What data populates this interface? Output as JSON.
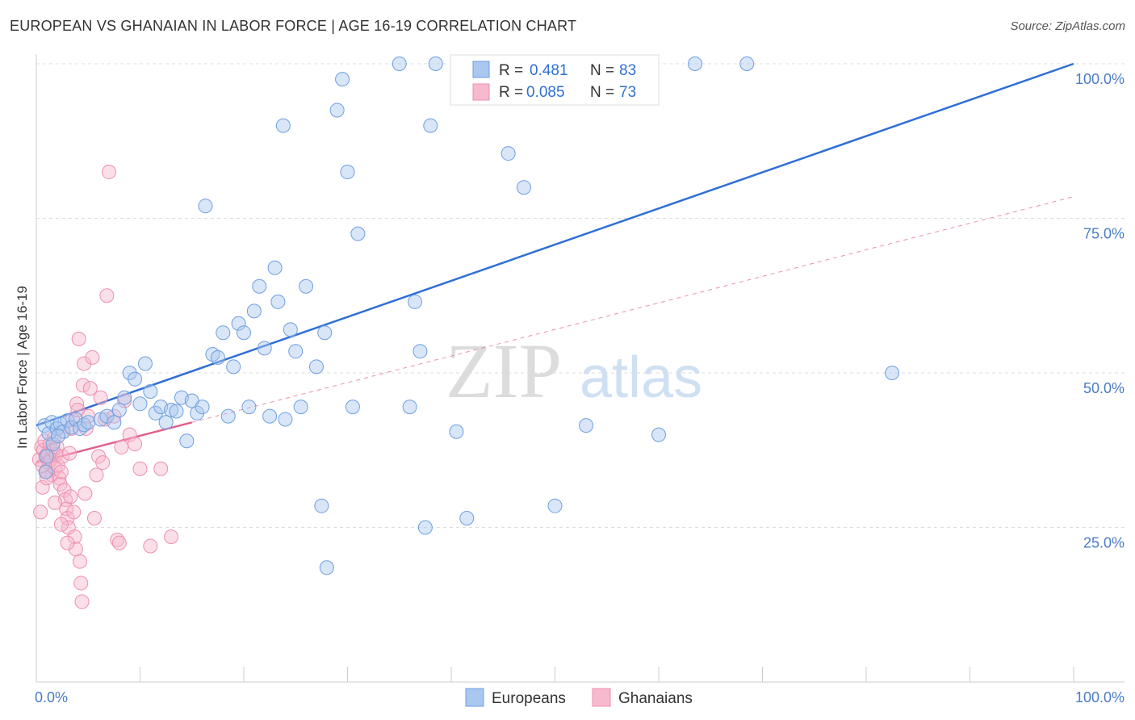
{
  "title": "EUROPEAN VS GHANAIAN IN LABOR FORCE | AGE 16-19 CORRELATION CHART",
  "source": "Source: ZipAtlas.com",
  "watermark": {
    "zip": "ZIP",
    "atlas": "atlas"
  },
  "colors": {
    "european_fill": "#a9c7ef",
    "european_stroke": "#6f9fe0",
    "european_line": "#2f6fd6",
    "ghanaian_fill": "#f7b9cd",
    "ghanaian_stroke": "#ec8fae",
    "ghanaian_line": "#e0608c",
    "axis_label": "#4a7cc7",
    "grid": "#dddddd"
  },
  "legend_top": [
    {
      "r_label": "R =",
      "r_value": "0.481",
      "n_label": "N =",
      "n_value": "83"
    },
    {
      "r_label": "R =",
      "r_value": "0.085",
      "n_label": "N =",
      "n_value": "73"
    }
  ],
  "chart_data": {
    "type": "scatter",
    "title": "EUROPEAN VS GHANAIAN IN LABOR FORCE | AGE 16-19 CORRELATION CHART",
    "xlabel": "",
    "ylabel": "In Labor Force | Age 16-19",
    "xlim": [
      0,
      100
    ],
    "ylim": [
      0,
      100
    ],
    "x_tick_labels": [
      "0.0%",
      "100.0%"
    ],
    "y_tick_values": [
      25,
      50,
      75,
      100
    ],
    "y_tick_labels": [
      "25.0%",
      "50.0%",
      "75.0%",
      "100.0%"
    ],
    "grid": true,
    "legend_position": "top-center",
    "series": [
      {
        "name": "Europeans",
        "r": 0.481,
        "n": 83,
        "trend": {
          "x": [
            0,
            100
          ],
          "y": [
            41.5,
            100
          ]
        },
        "points": [
          [
            0.8,
            41.5
          ],
          [
            1.2,
            40.2
          ],
          [
            1.5,
            42.0
          ],
          [
            2.0,
            41.0
          ],
          [
            2.3,
            41.8
          ],
          [
            2.6,
            40.5
          ],
          [
            3.0,
            42.3
          ],
          [
            3.4,
            41.2
          ],
          [
            3.8,
            42.5
          ],
          [
            4.2,
            41.0
          ],
          [
            4.6,
            41.6
          ],
          [
            5.0,
            42.0
          ],
          [
            0.9,
            34.0
          ],
          [
            1.6,
            38.5
          ],
          [
            2.1,
            39.8
          ],
          [
            1.0,
            36.5
          ],
          [
            6.2,
            42.5
          ],
          [
            6.8,
            43.0
          ],
          [
            7.5,
            42.0
          ],
          [
            8.0,
            44.0
          ],
          [
            8.5,
            46.0
          ],
          [
            9.0,
            50.0
          ],
          [
            9.5,
            49.0
          ],
          [
            10.0,
            45.0
          ],
          [
            10.5,
            51.5
          ],
          [
            11.0,
            47.0
          ],
          [
            11.5,
            43.5
          ],
          [
            12.0,
            44.5
          ],
          [
            12.5,
            42.0
          ],
          [
            13.0,
            44.0
          ],
          [
            13.5,
            43.8
          ],
          [
            14.0,
            46.0
          ],
          [
            14.5,
            39.0
          ],
          [
            15.0,
            45.5
          ],
          [
            15.5,
            43.5
          ],
          [
            16.0,
            44.5
          ],
          [
            16.3,
            77.0
          ],
          [
            17.0,
            53.0
          ],
          [
            17.5,
            52.5
          ],
          [
            18.0,
            56.5
          ],
          [
            18.5,
            43.0
          ],
          [
            19.0,
            51.0
          ],
          [
            19.5,
            58.0
          ],
          [
            20.0,
            56.5
          ],
          [
            20.5,
            44.5
          ],
          [
            21.0,
            60.0
          ],
          [
            21.5,
            64.0
          ],
          [
            22.0,
            54.0
          ],
          [
            22.5,
            43.0
          ],
          [
            23.0,
            67.0
          ],
          [
            23.3,
            61.5
          ],
          [
            23.8,
            90.0
          ],
          [
            24.0,
            42.5
          ],
          [
            24.5,
            57.0
          ],
          [
            25.0,
            53.5
          ],
          [
            25.5,
            44.5
          ],
          [
            26.0,
            64.0
          ],
          [
            27.0,
            51.0
          ],
          [
            27.5,
            28.5
          ],
          [
            27.8,
            56.5
          ],
          [
            28.0,
            18.5
          ],
          [
            29.0,
            92.5
          ],
          [
            29.5,
            97.5
          ],
          [
            30.0,
            82.5
          ],
          [
            30.5,
            44.5
          ],
          [
            31.0,
            72.5
          ],
          [
            35.0,
            100
          ],
          [
            36.0,
            44.5
          ],
          [
            36.5,
            61.5
          ],
          [
            37.0,
            53.5
          ],
          [
            37.5,
            25.0
          ],
          [
            38.0,
            90.0
          ],
          [
            38.5,
            100
          ],
          [
            40.5,
            40.5
          ],
          [
            41.5,
            26.5
          ],
          [
            45.5,
            85.5
          ],
          [
            47.0,
            80.0
          ],
          [
            50.0,
            28.5
          ],
          [
            53.0,
            41.5
          ],
          [
            60.0,
            40.0
          ],
          [
            63.5,
            100
          ],
          [
            68.5,
            100
          ],
          [
            82.5,
            50.0
          ]
        ]
      },
      {
        "name": "Ghanaians",
        "r": 0.085,
        "n": 73,
        "trend": {
          "x": [
            0,
            15
          ],
          "y": [
            35.5,
            42.0
          ],
          "dashed_extension": {
            "x": [
              15,
              100
            ],
            "y": [
              42.0,
              78.5
            ]
          }
        },
        "points": [
          [
            0.3,
            36.0
          ],
          [
            0.5,
            38.0
          ],
          [
            0.6,
            35.0
          ],
          [
            0.7,
            37.5
          ],
          [
            0.8,
            39.0
          ],
          [
            0.9,
            36.5
          ],
          [
            1.0,
            34.0
          ],
          [
            1.1,
            37.0
          ],
          [
            1.2,
            35.5
          ],
          [
            1.3,
            38.5
          ],
          [
            1.4,
            36.0
          ],
          [
            1.5,
            33.5
          ],
          [
            1.6,
            37.5
          ],
          [
            1.7,
            39.5
          ],
          [
            1.8,
            34.5
          ],
          [
            1.9,
            36.8
          ],
          [
            2.0,
            38.0
          ],
          [
            2.1,
            35.0
          ],
          [
            2.2,
            33.0
          ],
          [
            2.3,
            32.0
          ],
          [
            2.4,
            34.0
          ],
          [
            2.5,
            36.5
          ],
          [
            2.6,
            40.5
          ],
          [
            2.7,
            31.0
          ],
          [
            2.8,
            29.5
          ],
          [
            2.9,
            28.0
          ],
          [
            3.0,
            26.5
          ],
          [
            3.1,
            25.0
          ],
          [
            3.2,
            37.0
          ],
          [
            3.3,
            30.0
          ],
          [
            3.4,
            41.0
          ],
          [
            3.5,
            42.5
          ],
          [
            3.6,
            27.5
          ],
          [
            3.7,
            23.5
          ],
          [
            3.8,
            21.5
          ],
          [
            3.9,
            45.0
          ],
          [
            4.0,
            44.0
          ],
          [
            4.1,
            55.5
          ],
          [
            4.2,
            19.5
          ],
          [
            4.3,
            16.0
          ],
          [
            4.4,
            13.0
          ],
          [
            4.5,
            48.0
          ],
          [
            4.6,
            51.5
          ],
          [
            4.7,
            30.5
          ],
          [
            4.8,
            41.0
          ],
          [
            5.0,
            43.0
          ],
          [
            5.2,
            47.5
          ],
          [
            5.4,
            52.5
          ],
          [
            5.6,
            26.5
          ],
          [
            5.8,
            33.5
          ],
          [
            6.0,
            36.5
          ],
          [
            6.2,
            46.0
          ],
          [
            6.4,
            35.5
          ],
          [
            6.6,
            42.5
          ],
          [
            6.8,
            62.5
          ],
          [
            7.0,
            82.5
          ],
          [
            7.5,
            43.0
          ],
          [
            7.8,
            23.0
          ],
          [
            8.0,
            22.5
          ],
          [
            8.2,
            38.0
          ],
          [
            8.5,
            45.5
          ],
          [
            9.0,
            40.0
          ],
          [
            9.5,
            38.5
          ],
          [
            10.0,
            34.5
          ],
          [
            11.0,
            22.0
          ],
          [
            12.0,
            34.5
          ],
          [
            13.0,
            23.5
          ],
          [
            0.4,
            27.5
          ],
          [
            0.6,
            31.5
          ],
          [
            1.0,
            33.0
          ],
          [
            1.8,
            29.0
          ],
          [
            2.4,
            25.5
          ],
          [
            3.0,
            22.5
          ]
        ]
      }
    ]
  },
  "bottom_legend": [
    {
      "label": "Europeans"
    },
    {
      "label": "Ghanaians"
    }
  ]
}
